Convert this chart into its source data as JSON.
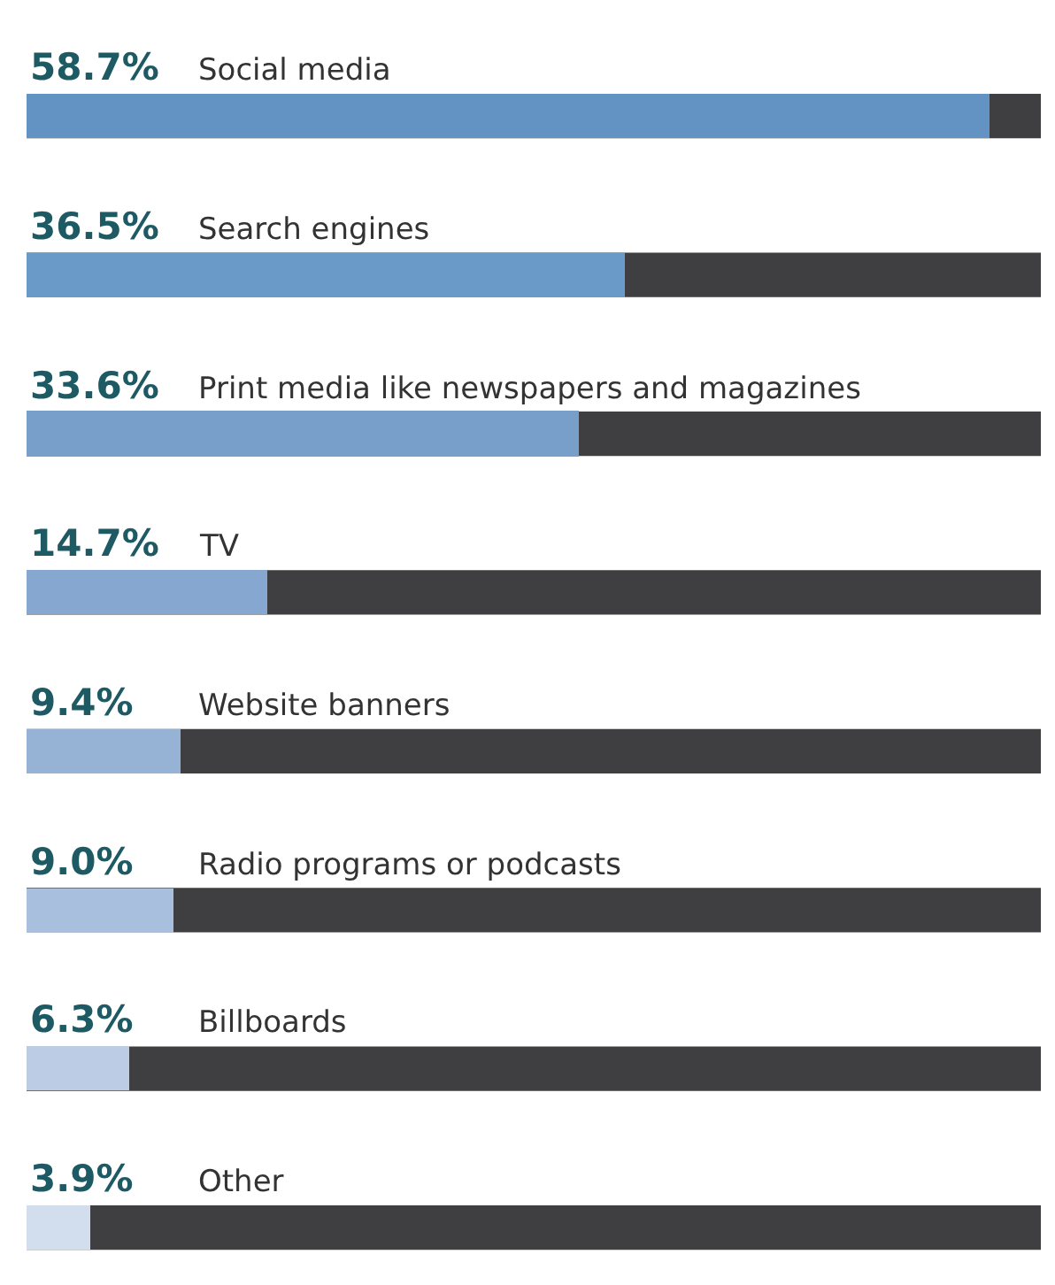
{
  "chart_data": {
    "type": "bar",
    "orientation": "horizontal",
    "value_labels": [
      "58.7%",
      "36.5%",
      "33.6%",
      "14.7%",
      "9.4%",
      "9.0%",
      "6.3%",
      "3.9%"
    ],
    "tick_labels": false,
    "grid": false,
    "legend": false,
    "categories": [
      "Social media",
      "Search engines",
      "Print media like newspapers and magazines",
      "TV",
      "Website banners",
      "Radio programs or podcasts",
      "Billboards",
      "Other"
    ],
    "values": [
      58.7,
      36.5,
      33.6,
      14.7,
      9.4,
      9.0,
      6.3,
      3.9
    ],
    "colors": [
      "#6393c3",
      "#6a9ac7",
      "#789fca",
      "#86a8d0",
      "#96b3d6",
      "#a8bfdd",
      "#bccce4",
      "#d2dded"
    ]
  }
}
